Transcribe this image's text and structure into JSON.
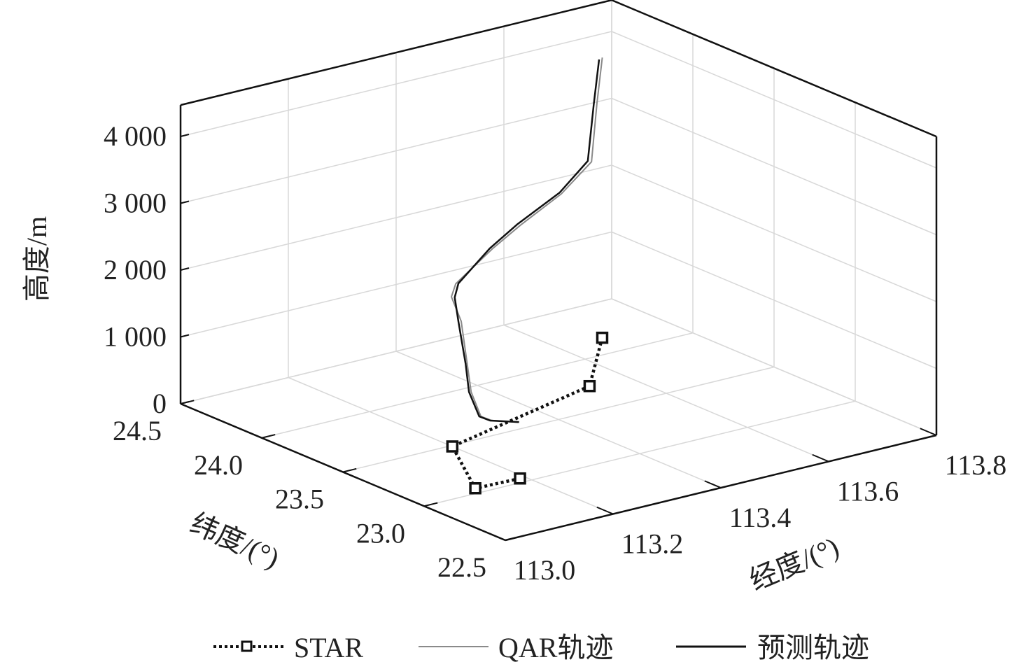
{
  "chart_data": {
    "type": "line",
    "projection": "3d",
    "xlabel": "经度/(°)",
    "ylabel": "纬度/(°)",
    "zlabel": "高度/m",
    "xlim": [
      113.0,
      113.8
    ],
    "ylim": [
      22.5,
      24.5
    ],
    "zlim": [
      0,
      4470
    ],
    "x_ticks": [
      "113.0",
      "113.2",
      "113.4",
      "113.6",
      "113.8"
    ],
    "x_tick_values": [
      113.0,
      113.2,
      113.4,
      113.6,
      113.8
    ],
    "y_ticks": [
      "22.5",
      "23.0",
      "23.5",
      "24.0",
      "24.5"
    ],
    "y_tick_values": [
      22.5,
      23.0,
      23.5,
      24.0,
      24.5
    ],
    "z_ticks": [
      "0",
      "1 000",
      "2 000",
      "3 000",
      "4 000"
    ],
    "z_tick_values": [
      0,
      1000,
      2000,
      3000,
      4000
    ],
    "grid": true,
    "legend_position": "bottom",
    "series": [
      {
        "name": "STAR",
        "style": "dotted-square-markers",
        "color": "#111111",
        "lon": [
          113.19,
          113.11,
          113.2,
          113.53,
          113.68
        ],
        "lat": [
          23.04,
          23.05,
          23.49,
          23.74,
          24.16
        ],
        "alt": [
          0,
          0,
          0,
          0,
          0
        ]
      },
      {
        "name": "QAR轨迹",
        "style": "solid-thin",
        "color": "#8a8a8a",
        "lon": [
          113.632,
          113.622,
          113.612,
          113.556,
          113.48,
          113.428,
          113.36,
          113.352,
          113.34,
          113.306,
          113.268,
          113.256,
          113.276,
          113.34
        ],
        "lat": [
          24.0,
          24.0,
          24.0,
          24.0,
          24.0,
          24.0,
          24.0,
          24.0,
          23.9,
          23.75,
          23.6,
          23.5,
          23.5,
          23.55
        ],
        "alt": [
          4450,
          3780,
          2930,
          2560,
          2240,
          1990,
          1600,
          1420,
          1180,
          760,
          570,
          330,
          230,
          25
        ]
      },
      {
        "name": "预测轨迹",
        "style": "solid",
        "color": "#111111",
        "lon": [
          113.626,
          113.616,
          113.605,
          113.553,
          113.475,
          113.423,
          113.365,
          113.358,
          113.335,
          113.303,
          113.264,
          113.253,
          113.273,
          113.342
        ],
        "lat": [
          24.0,
          24.0,
          24.0,
          24.0,
          24.0,
          24.0,
          24.0,
          24.0,
          23.9,
          23.75,
          23.6,
          23.5,
          23.5,
          23.55
        ],
        "alt": [
          4433,
          3773,
          2956,
          2586,
          2268,
          2004,
          1595,
          1399,
          1180,
          769,
          579,
          335,
          234,
          25
        ]
      }
    ]
  }
}
